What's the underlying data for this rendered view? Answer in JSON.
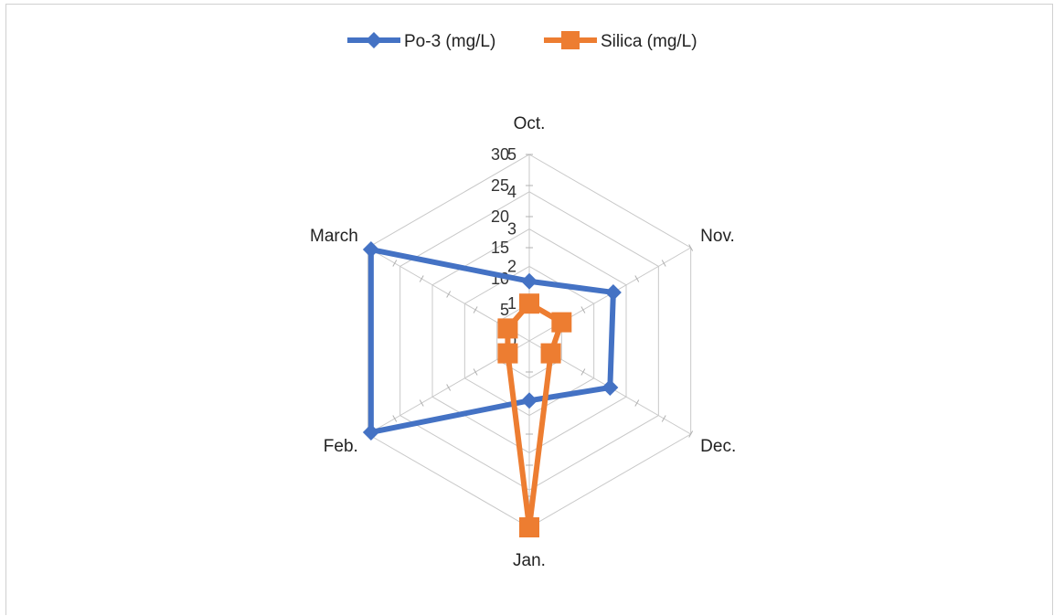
{
  "chart_data": {
    "type": "radar",
    "categories": [
      "Oct.",
      "Nov.",
      "Dec.",
      "Jan.",
      "Feb.",
      "March"
    ],
    "series": [
      {
        "name": "Po-3 (mg/L)",
        "color": "#4472C4",
        "marker": "diamond",
        "axis": "primary",
        "values": [
          1.6,
          2.6,
          2.5,
          1.6,
          4.9,
          4.9
        ]
      },
      {
        "name": "Silica (mg/L)",
        "color": "#ED7D31",
        "marker": "square",
        "axis": "secondary",
        "values": [
          6,
          6,
          4,
          30,
          4,
          4
        ]
      }
    ],
    "primary_axis": {
      "range": [
        0,
        5
      ],
      "ticks": [
        "0",
        "1",
        "2",
        "3",
        "4",
        "5"
      ]
    },
    "secondary_axis": {
      "range": [
        0,
        30
      ],
      "ticks": [
        "5",
        "10",
        "15",
        "20",
        "25",
        "30"
      ]
    },
    "legend_position": "top",
    "grid": true
  }
}
